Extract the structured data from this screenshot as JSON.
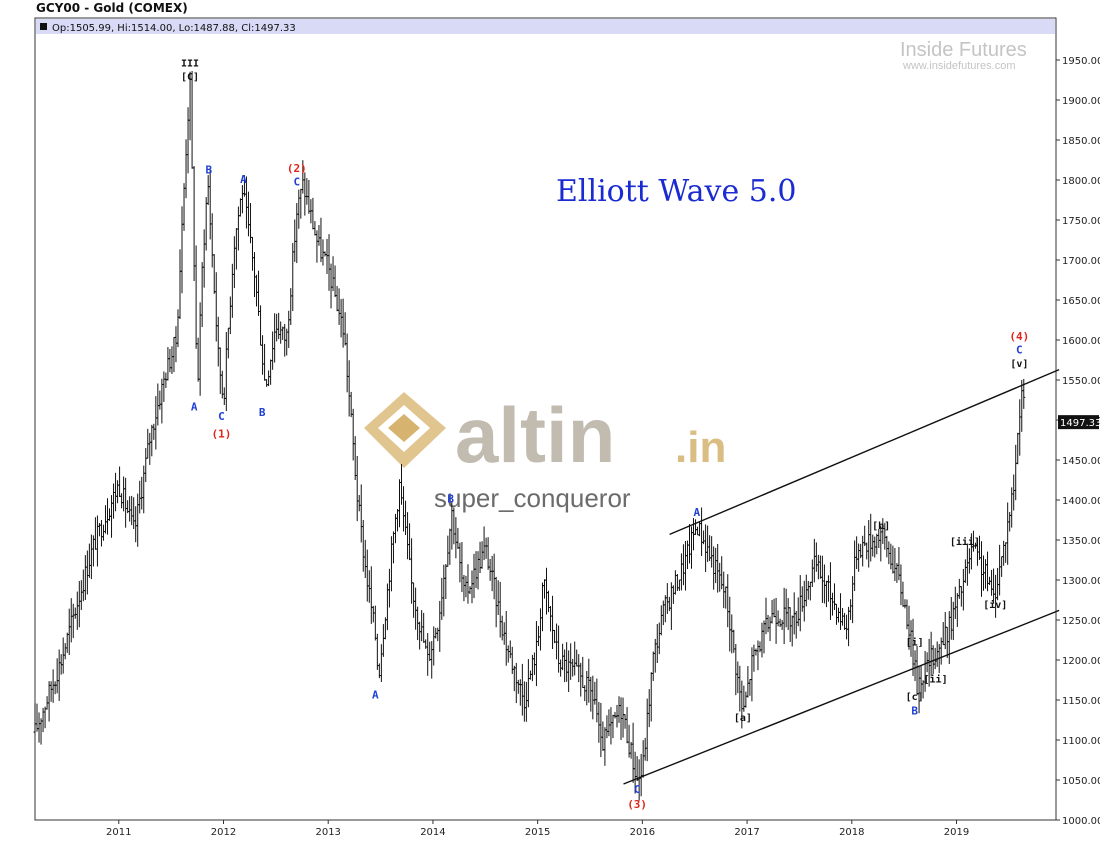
{
  "header": {
    "title": "GCY00 - Gold (COMEX)",
    "ohlc": "Op:1505.99, Hi:1514.00, Lo:1487.88, Cl:1497.33"
  },
  "annotations": {
    "ew_title": "Elliott Wave 5.0",
    "watermark": "altin",
    "watermark_suffix": ".in",
    "author": "super_conqueror",
    "logo_line1": "Inside Futures",
    "logo_line2": "www.insidefutures.com",
    "last_price_tag": "1497.33"
  },
  "chart_data": {
    "type": "ohlc",
    "title": "GCY00 - Gold (COMEX)",
    "xlabel": "",
    "ylabel": "",
    "y_range": [
      1000,
      1965
    ],
    "y_ticks": [
      1000,
      1050,
      1100,
      1150,
      1200,
      1250,
      1300,
      1350,
      1400,
      1450,
      1500,
      1550,
      1600,
      1650,
      1700,
      1750,
      1800,
      1850,
      1900,
      1950
    ],
    "y_tick_labels": [
      "1000.00",
      "1050.00",
      "1100.00",
      "1150.00",
      "1200.00",
      "1250.00",
      "1300.00",
      "1350.00",
      "1400.00",
      "1450.00",
      "1500.00",
      "1550.00",
      "1600.00",
      "1650.00",
      "1700.00",
      "1750.00",
      "1800.00",
      "1850.00",
      "1900.00",
      "1950.00"
    ],
    "x_range": [
      2010.2,
      2019.95
    ],
    "x_ticks": [
      2011,
      2012,
      2013,
      2014,
      2015,
      2016,
      2017,
      2018,
      2019
    ],
    "x_tick_labels": [
      "2011",
      "2012",
      "2013",
      "2014",
      "2015",
      "2016",
      "2017",
      "2018",
      "2019"
    ],
    "last_price": 1497.33,
    "price_path": [
      [
        2010.2,
        1110
      ],
      [
        2010.45,
        1200
      ],
      [
        2010.75,
        1340
      ],
      [
        2011.0,
        1420
      ],
      [
        2011.15,
        1360
      ],
      [
        2011.3,
        1480
      ],
      [
        2011.45,
        1560
      ],
      [
        2011.55,
        1600
      ],
      [
        2011.65,
        1860
      ],
      [
        2011.68,
        1920
      ],
      [
        2011.75,
        1530
      ],
      [
        2011.8,
        1700
      ],
      [
        2011.85,
        1800
      ],
      [
        2011.95,
        1580
      ],
      [
        2012.0,
        1525
      ],
      [
        2012.1,
        1720
      ],
      [
        2012.18,
        1790
      ],
      [
        2012.3,
        1680
      ],
      [
        2012.4,
        1540
      ],
      [
        2012.5,
        1620
      ],
      [
        2012.6,
        1600
      ],
      [
        2012.7,
        1760
      ],
      [
        2012.76,
        1795
      ],
      [
        2012.9,
        1720
      ],
      [
        2013.0,
        1690
      ],
      [
        2013.15,
        1610
      ],
      [
        2013.28,
        1400
      ],
      [
        2013.35,
        1320
      ],
      [
        2013.45,
        1230
      ],
      [
        2013.48,
        1180
      ],
      [
        2013.6,
        1330
      ],
      [
        2013.68,
        1420
      ],
      [
        2013.8,
        1290
      ],
      [
        2013.95,
        1200
      ],
      [
        2014.05,
        1250
      ],
      [
        2014.18,
        1385
      ],
      [
        2014.3,
        1280
      ],
      [
        2014.5,
        1340
      ],
      [
        2014.7,
        1220
      ],
      [
        2014.87,
        1150
      ],
      [
        2015.0,
        1220
      ],
      [
        2015.05,
        1300
      ],
      [
        2015.2,
        1200
      ],
      [
        2015.4,
        1180
      ],
      [
        2015.55,
        1150
      ],
      [
        2015.6,
        1090
      ],
      [
        2015.8,
        1140
      ],
      [
        2015.95,
        1050
      ],
      [
        2016.0,
        1060
      ],
      [
        2016.1,
        1200
      ],
      [
        2016.2,
        1260
      ],
      [
        2016.4,
        1320
      ],
      [
        2016.52,
        1370
      ],
      [
        2016.65,
        1330
      ],
      [
        2016.8,
        1280
      ],
      [
        2016.96,
        1130
      ],
      [
        2017.05,
        1200
      ],
      [
        2017.25,
        1260
      ],
      [
        2017.45,
        1250
      ],
      [
        2017.65,
        1320
      ],
      [
        2017.8,
        1280
      ],
      [
        2017.95,
        1240
      ],
      [
        2018.05,
        1340
      ],
      [
        2018.2,
        1350
      ],
      [
        2018.28,
        1360
      ],
      [
        2018.45,
        1300
      ],
      [
        2018.55,
        1240
      ],
      [
        2018.62,
        1170
      ],
      [
        2018.75,
        1200
      ],
      [
        2018.9,
        1230
      ],
      [
        2019.05,
        1290
      ],
      [
        2019.15,
        1340
      ],
      [
        2019.3,
        1300
      ],
      [
        2019.35,
        1275
      ],
      [
        2019.45,
        1340
      ],
      [
        2019.55,
        1420
      ],
      [
        2019.62,
        1545
      ],
      [
        2019.66,
        1500
      ]
    ],
    "wave_labels": [
      {
        "text": "III",
        "x": 2011.68,
        "y": 1942,
        "style": "black"
      },
      {
        "text": "[C]",
        "x": 2011.68,
        "y": 1925,
        "style": "black"
      },
      {
        "text": "A",
        "x": 2011.72,
        "y": 1512,
        "style": "blue"
      },
      {
        "text": "B",
        "x": 2011.86,
        "y": 1808,
        "style": "blue"
      },
      {
        "text": "C",
        "x": 2011.98,
        "y": 1500,
        "style": "blue"
      },
      {
        "text": "(1)",
        "x": 2011.98,
        "y": 1478,
        "style": "red"
      },
      {
        "text": "A",
        "x": 2012.19,
        "y": 1796,
        "style": "blue"
      },
      {
        "text": "B",
        "x": 2012.37,
        "y": 1505,
        "style": "blue"
      },
      {
        "text": "(2)",
        "x": 2012.7,
        "y": 1810,
        "style": "red"
      },
      {
        "text": "C",
        "x": 2012.7,
        "y": 1793,
        "style": "blue"
      },
      {
        "text": "A",
        "x": 2013.45,
        "y": 1152,
        "style": "blue"
      },
      {
        "text": "B",
        "x": 2014.17,
        "y": 1397,
        "style": "blue"
      },
      {
        "text": "A",
        "x": 2016.52,
        "y": 1380,
        "style": "blue"
      },
      {
        "text": "[a]",
        "x": 2016.96,
        "y": 1124,
        "style": "black"
      },
      {
        "text": "[b]",
        "x": 2018.28,
        "y": 1364,
        "style": "black"
      },
      {
        "text": "[i]",
        "x": 2018.6,
        "y": 1218,
        "style": "black"
      },
      {
        "text": "[ii]",
        "x": 2018.8,
        "y": 1172,
        "style": "black"
      },
      {
        "text": "[c]",
        "x": 2018.6,
        "y": 1150,
        "style": "black"
      },
      {
        "text": "B",
        "x": 2018.6,
        "y": 1132,
        "style": "blue"
      },
      {
        "text": "[iii]",
        "x": 2019.08,
        "y": 1344,
        "style": "black"
      },
      {
        "text": "[iv]",
        "x": 2019.37,
        "y": 1265,
        "style": "black"
      },
      {
        "text": "(4)",
        "x": 2019.6,
        "y": 1600,
        "style": "red"
      },
      {
        "text": "C",
        "x": 2019.6,
        "y": 1583,
        "style": "blue"
      },
      {
        "text": "[v]",
        "x": 2019.6,
        "y": 1566,
        "style": "black"
      },
      {
        "text": "C",
        "x": 2015.95,
        "y": 1034,
        "style": "blue"
      },
      {
        "text": "(3)",
        "x": 2015.95,
        "y": 1015,
        "style": "red"
      }
    ],
    "trendlines": [
      {
        "x1": 2016.26,
        "y1": 1357,
        "x2": 2019.98,
        "y2": 1563
      },
      {
        "x1": 2015.82,
        "y1": 1045,
        "x2": 2019.98,
        "y2": 1262
      }
    ],
    "grid": false,
    "legend": "none"
  },
  "colors": {
    "bars": "#111111",
    "wave_blue": "#1f3fd6",
    "wave_red": "#e0241b",
    "title_blue": "#1a2bd1",
    "header_band": "#d8daf6"
  }
}
